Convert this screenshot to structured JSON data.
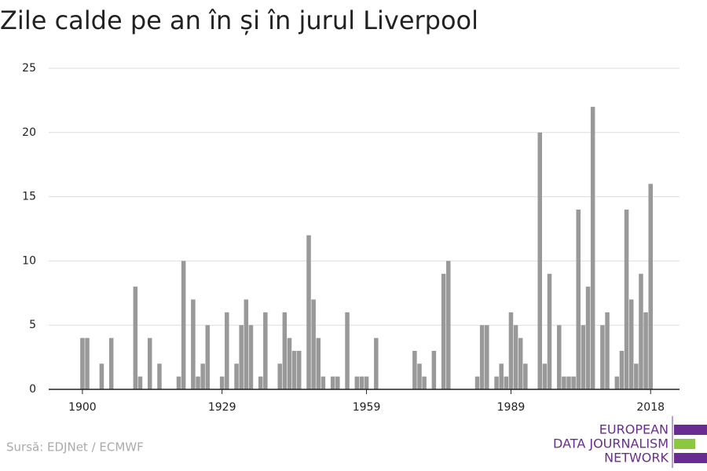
{
  "chart_data": {
    "type": "bar",
    "title": "Zile calde pe an în și în jurul Liverpool",
    "source": "Sursă: EDJNet / ECMWF",
    "logo": [
      "EUROPEAN",
      "DATA JOURNALISM",
      "NETWORK"
    ],
    "color": "#999999",
    "x": [
      1900,
      1901,
      1902,
      1903,
      1904,
      1905,
      1906,
      1907,
      1908,
      1909,
      1910,
      1911,
      1912,
      1913,
      1914,
      1915,
      1916,
      1917,
      1918,
      1919,
      1920,
      1921,
      1922,
      1923,
      1924,
      1925,
      1926,
      1927,
      1928,
      1929,
      1930,
      1931,
      1932,
      1933,
      1934,
      1935,
      1936,
      1937,
      1938,
      1939,
      1940,
      1941,
      1942,
      1943,
      1944,
      1945,
      1946,
      1947,
      1948,
      1949,
      1950,
      1951,
      1952,
      1953,
      1954,
      1955,
      1956,
      1957,
      1958,
      1959,
      1960,
      1961,
      1962,
      1963,
      1964,
      1965,
      1966,
      1967,
      1968,
      1969,
      1970,
      1971,
      1972,
      1973,
      1974,
      1975,
      1976,
      1977,
      1978,
      1979,
      1980,
      1981,
      1982,
      1983,
      1984,
      1985,
      1986,
      1987,
      1988,
      1989,
      1990,
      1991,
      1992,
      1993,
      1994,
      1995,
      1996,
      1997,
      1998,
      1999,
      2000,
      2001,
      2002,
      2003,
      2004,
      2005,
      2006,
      2007,
      2008,
      2009,
      2010,
      2011,
      2012,
      2013,
      2014,
      2015,
      2016,
      2017,
      2018
    ],
    "values": [
      4,
      4,
      0,
      0,
      2,
      0,
      4,
      0,
      0,
      0,
      0,
      8,
      1,
      0,
      4,
      0,
      2,
      0,
      0,
      0,
      1,
      10,
      0,
      7,
      1,
      2,
      5,
      0,
      0,
      1,
      6,
      0,
      2,
      5,
      7,
      5,
      0,
      1,
      6,
      0,
      0,
      2,
      6,
      4,
      3,
      3,
      0,
      12,
      7,
      4,
      1,
      0,
      1,
      1,
      0,
      6,
      0,
      1,
      1,
      1,
      0,
      4,
      0,
      0,
      0,
      0,
      0,
      0,
      0,
      3,
      2,
      1,
      0,
      3,
      0,
      9,
      10,
      0,
      0,
      0,
      0,
      0,
      1,
      5,
      5,
      0,
      1,
      2,
      1,
      6,
      5,
      4,
      2,
      0,
      0,
      20,
      2,
      9,
      0,
      5,
      1,
      1,
      1,
      14,
      5,
      8,
      22,
      0,
      5,
      6,
      0,
      1,
      3,
      14,
      7,
      2,
      9,
      6,
      16
    ],
    "xlim": [
      1893,
      2024
    ],
    "xticks": [
      1900,
      1929,
      1959,
      1989,
      2018
    ],
    "ylim": [
      0,
      25
    ],
    "yticks": [
      0,
      5,
      10,
      15,
      20,
      25
    ],
    "grid": true
  }
}
